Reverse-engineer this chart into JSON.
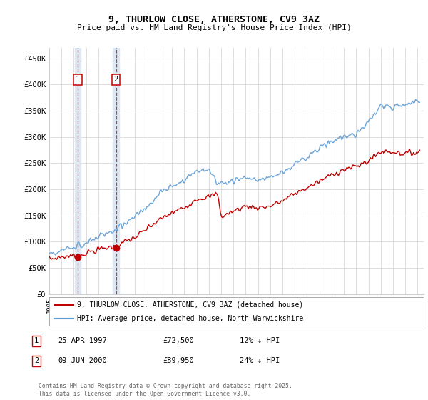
{
  "title": "9, THURLOW CLOSE, ATHERSTONE, CV9 3AZ",
  "subtitle": "Price paid vs. HM Land Registry's House Price Index (HPI)",
  "ylabel_ticks": [
    "£0",
    "£50K",
    "£100K",
    "£150K",
    "£200K",
    "£250K",
    "£300K",
    "£350K",
    "£400K",
    "£450K"
  ],
  "ylim": [
    0,
    470000
  ],
  "xlim_start": 1995.0,
  "xlim_end": 2025.5,
  "legend_line1": "9, THURLOW CLOSE, ATHERSTONE, CV9 3AZ (detached house)",
  "legend_line2": "HPI: Average price, detached house, North Warwickshire",
  "purchase1_date": 1997.32,
  "purchase1_price": 72500,
  "purchase2_date": 2000.44,
  "purchase2_price": 89950,
  "table_entries": [
    {
      "num": "1",
      "date": "25-APR-1997",
      "price": "£72,500",
      "pct": "12% ↓ HPI"
    },
    {
      "num": "2",
      "date": "09-JUN-2000",
      "price": "£89,950",
      "pct": "24% ↓ HPI"
    }
  ],
  "footer": "Contains HM Land Registry data © Crown copyright and database right 2025.\nThis data is licensed under the Open Government Licence v3.0.",
  "hpi_color": "#5b9bd5",
  "price_color": "#c00000",
  "shade_color": "#dce9f5",
  "grid_color": "#d0d0d0",
  "background_color": "#ffffff"
}
